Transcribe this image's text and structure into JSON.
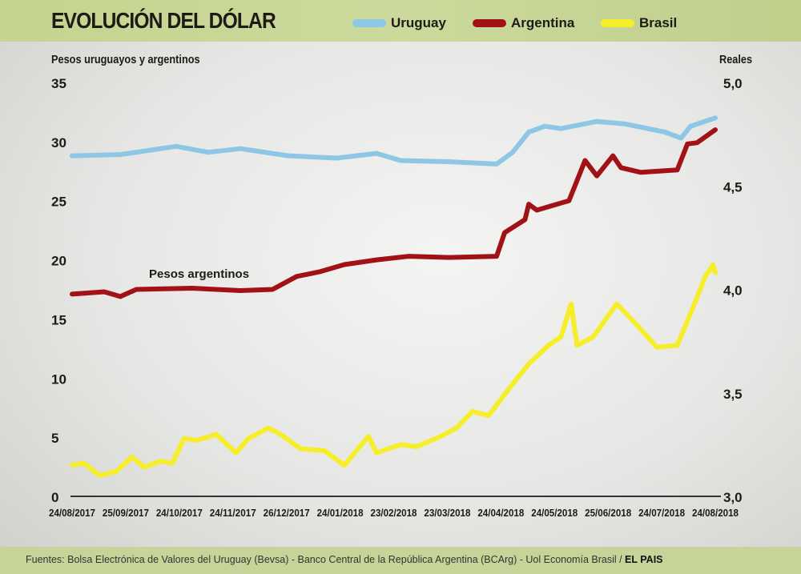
{
  "chart_data": {
    "type": "line",
    "title": "EVOLUCIÓN DEL DÓLAR",
    "ylabel_left": "Pesos uruguayos y argentinos",
    "ylabel_right": "Reales",
    "x_tick_labels": [
      "24/08/2017",
      "25/09/2017",
      "24/10/2017",
      "24/11/2017",
      "26/12/2017",
      "24/01/2018",
      "23/02/2018",
      "23/03/2018",
      "24/04/2018",
      "24/05/2018",
      "25/06/2018",
      "24/07/2018",
      "24/08/2018"
    ],
    "xlim_months": [
      0,
      12
    ],
    "ylim_left": [
      0,
      35
    ],
    "yticks_left": [
      "0",
      "5",
      "10",
      "15",
      "20",
      "25",
      "30",
      "35"
    ],
    "ylim_right": [
      3.0,
      5.0
    ],
    "yticks_right": [
      "3,0",
      "3,5",
      "4,0",
      "4,5",
      "5,0"
    ],
    "annotation": "Pesos argentinos",
    "legend": [
      {
        "name": "Uruguay",
        "color": "#8ec6e6"
      },
      {
        "name": "Argentina",
        "color": "#a01216"
      },
      {
        "name": "Brasil",
        "color": "#f6ee2a"
      }
    ],
    "series": [
      {
        "name": "Uruguay",
        "axis": "left",
        "color": "#8ec6e6",
        "x": [
          0,
          0.9,
          1.94,
          2.54,
          3.14,
          4.04,
          4.93,
          5.68,
          6.13,
          7.03,
          7.92,
          8.22,
          8.52,
          8.82,
          9.12,
          9.79,
          10.31,
          11.06,
          11.36,
          11.54,
          12
        ],
        "y": [
          28.8,
          28.9,
          29.6,
          29.1,
          29.4,
          28.8,
          28.6,
          29.0,
          28.4,
          28.3,
          28.1,
          29.1,
          30.8,
          31.3,
          31.1,
          31.7,
          31.5,
          30.8,
          30.3,
          31.3,
          32.0
        ]
      },
      {
        "name": "Argentina",
        "axis": "left",
        "color": "#a01216",
        "x": [
          0,
          0.6,
          0.9,
          1.2,
          2.24,
          3.14,
          3.74,
          4.19,
          4.63,
          5.08,
          5.68,
          6.28,
          7.03,
          7.92,
          8.07,
          8.45,
          8.52,
          8.67,
          9.27,
          9.57,
          9.79,
          10.09,
          10.24,
          10.61,
          11.29,
          11.48,
          11.66,
          12
        ],
        "y": [
          17.1,
          17.3,
          16.9,
          17.5,
          17.6,
          17.4,
          17.5,
          18.6,
          19.0,
          19.6,
          20.0,
          20.3,
          20.2,
          20.3,
          22.3,
          23.4,
          24.7,
          24.2,
          25.0,
          28.4,
          27.1,
          28.8,
          27.8,
          27.4,
          27.6,
          29.8,
          29.9,
          31.0
        ]
      },
      {
        "name": "Brasil",
        "axis": "right",
        "color": "#f6ee2a",
        "x": [
          0,
          0.22,
          0.52,
          0.82,
          1.12,
          1.35,
          1.64,
          1.87,
          2.09,
          2.32,
          2.69,
          3.06,
          3.29,
          3.66,
          3.89,
          4.26,
          4.71,
          5.08,
          5.53,
          5.68,
          6.13,
          6.43,
          6.88,
          7.17,
          7.47,
          7.77,
          8.15,
          8.52,
          8.89,
          9.12,
          9.31,
          9.42,
          9.72,
          10.16,
          10.46,
          10.91,
          11.29,
          11.58,
          11.81,
          11.96,
          12
        ],
        "y": [
          3.15,
          3.16,
          3.1,
          3.12,
          3.19,
          3.14,
          3.17,
          3.16,
          3.28,
          3.27,
          3.3,
          3.21,
          3.28,
          3.33,
          3.3,
          3.23,
          3.22,
          3.15,
          3.29,
          3.21,
          3.25,
          3.24,
          3.29,
          3.33,
          3.41,
          3.39,
          3.52,
          3.64,
          3.73,
          3.77,
          3.93,
          3.73,
          3.77,
          3.93,
          3.85,
          3.72,
          3.73,
          3.91,
          4.06,
          4.12,
          4.08
        ]
      }
    ]
  },
  "footer": {
    "sources": "Fuentes: Bolsa Electrónica de Valores del Uruguay (Bevsa) - Banco Central de la República Argentina (BCArg) - Uol Economía Brasil / ",
    "brand": "EL PAIS"
  }
}
